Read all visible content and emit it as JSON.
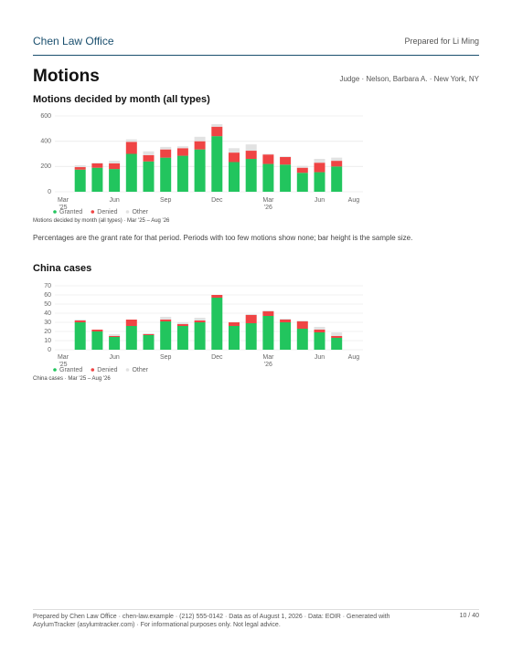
{
  "header": {
    "firm": "Chen Law Office",
    "prepared": "Prepared for Li Ming",
    "title": "Motions",
    "judge": "Judge · Nelson, Barbara A. · New York, NY"
  },
  "note": "Percentages are the grant rate for that period. Periods with too few motions show none; bar height is the sample size.",
  "chart_data": [
    {
      "type": "stacked-bar",
      "title": "Motions decided by month (all types)",
      "caption": "Motions decided by month (all types) · Mar '25 – Aug '26",
      "categories": [
        "Mar '25",
        null,
        null,
        "Jun",
        null,
        null,
        "Sep",
        null,
        null,
        "Dec",
        null,
        null,
        "Mar '26",
        null,
        null,
        "Jun",
        null,
        "Aug"
      ],
      "series": [
        {
          "name": "Granted",
          "color": "#22c55e",
          "values": [
            null,
            175,
            190,
            180,
            300,
            240,
            270,
            285,
            335,
            440,
            235,
            260,
            220,
            215,
            150,
            155,
            200,
            null
          ]
        },
        {
          "name": "Denied",
          "color": "#ef4444",
          "values": [
            null,
            20,
            35,
            45,
            95,
            50,
            65,
            60,
            65,
            75,
            75,
            65,
            75,
            60,
            40,
            75,
            45,
            null
          ]
        },
        {
          "name": "Other",
          "color": "#e2e2e2",
          "values": [
            null,
            15,
            5,
            20,
            20,
            30,
            20,
            15,
            35,
            20,
            35,
            50,
            5,
            5,
            15,
            30,
            25,
            null
          ]
        }
      ],
      "ylim": [
        0,
        600
      ],
      "yticks": [
        0,
        200,
        400,
        600
      ],
      "grid": true
    },
    {
      "type": "stacked-bar",
      "title": "China cases",
      "caption": "China cases · Mar '25 – Aug '26",
      "categories": [
        "Mar '25",
        null,
        null,
        "Jun",
        null,
        null,
        "Sep",
        null,
        null,
        "Dec",
        null,
        null,
        "Mar '26",
        null,
        null,
        "Jun",
        null,
        "Aug"
      ],
      "series": [
        {
          "name": "Granted",
          "color": "#22c55e",
          "values": [
            null,
            30,
            20,
            14,
            26,
            16,
            31,
            26,
            30,
            57,
            26,
            29,
            37,
            30,
            23,
            19,
            13,
            null
          ]
        },
        {
          "name": "Denied",
          "color": "#ef4444",
          "values": [
            null,
            2,
            2,
            1,
            7,
            1,
            2,
            2,
            2,
            3,
            4,
            9,
            5,
            3,
            8,
            3,
            2,
            null
          ]
        },
        {
          "name": "Other",
          "color": "#e2e2e2",
          "values": [
            null,
            1,
            0,
            2,
            0,
            1,
            3,
            2,
            3,
            0,
            0,
            1,
            1,
            1,
            1,
            3,
            4,
            null
          ]
        }
      ],
      "ylim": [
        0,
        70
      ],
      "yticks": [
        0,
        10,
        20,
        30,
        40,
        50,
        60,
        70
      ],
      "grid": true
    }
  ],
  "footer": {
    "text": "Prepared by Chen Law Office · chen-law.example · (212) 555-0142 · Data as of August 1, 2026 · Data: EOIR · Generated with AsylumTracker (asylumtracker.com) · For informational purposes only. Not legal advice.",
    "page": "10 / 40"
  }
}
